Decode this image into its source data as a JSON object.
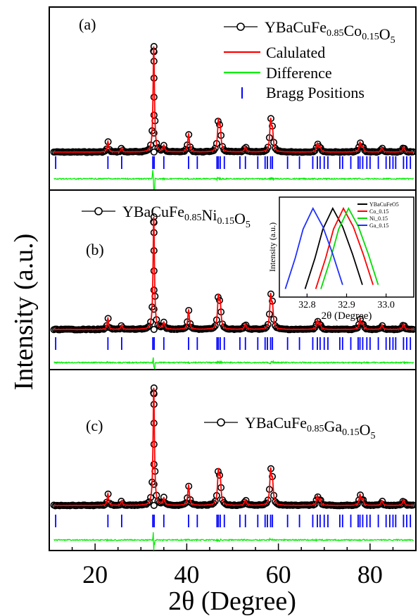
{
  "figure": {
    "ylabel": "Intensity (a.u.)",
    "xlabel": "2θ (Degree)",
    "x_ticks": [
      20,
      40,
      60,
      80
    ],
    "xlim": [
      10,
      90
    ]
  },
  "colors": {
    "observed": "#000000",
    "calculated": "#ff0000",
    "difference": "#00ee00",
    "bragg": "#0000ff",
    "inset_ni": "#00dd00",
    "inset_ga": "#2030ff"
  },
  "legend": {
    "calculated": "Calulated",
    "difference": "Difference",
    "bragg": "Bragg Positions"
  },
  "panels": [
    {
      "label": "(a)",
      "sample": {
        "base": "YBaCuFe",
        "s1": "0.85",
        "dop": "Co",
        "s2": "0.15",
        "tail": "O",
        "s3": "5"
      }
    },
    {
      "label": "(b)",
      "sample": {
        "base": "YBaCuFe",
        "s1": "0.85",
        "dop": "Ni",
        "s2": "0.15",
        "tail": "O",
        "s3": "5"
      }
    },
    {
      "label": "(c)",
      "sample": {
        "base": "YBaCuFe",
        "s1": "0.85",
        "dop": "Ga",
        "s2": "0.15",
        "tail": "O",
        "s3": "5"
      }
    }
  ],
  "chart_data": [
    {
      "type": "line",
      "description_of": "main XRD patterns (panels a, b, c); relative intensities, first peak = 1",
      "xlim": [
        10,
        90
      ],
      "peaks": [
        {
          "x": 22.8,
          "h": 0.1
        },
        {
          "x": 25.8,
          "h": 0.04
        },
        {
          "x": 32.8,
          "h": 1.0
        },
        {
          "x": 35.0,
          "h": 0.06
        },
        {
          "x": 40.4,
          "h": 0.17
        },
        {
          "x": 46.9,
          "h": 0.27
        },
        {
          "x": 47.3,
          "h": 0.2
        },
        {
          "x": 52.8,
          "h": 0.05
        },
        {
          "x": 58.3,
          "h": 0.28
        },
        {
          "x": 58.7,
          "h": 0.18
        },
        {
          "x": 68.5,
          "h": 0.08
        },
        {
          "x": 69.1,
          "h": 0.05
        },
        {
          "x": 77.8,
          "h": 0.09
        },
        {
          "x": 78.4,
          "h": 0.05
        },
        {
          "x": 82.6,
          "h": 0.04
        },
        {
          "x": 87.3,
          "h": 0.05
        }
      ],
      "bragg_positions": [
        11.4,
        22.8,
        25.8,
        32.6,
        32.9,
        35.0,
        40.4,
        42.3,
        46.6,
        46.9,
        47.3,
        48.2,
        51.6,
        52.8,
        55.5,
        57.1,
        57.6,
        58.3,
        58.7,
        62.0,
        64.6,
        67.5,
        68.5,
        69.1,
        70.0,
        70.8,
        73.4,
        74.0,
        75.8,
        77.4,
        77.8,
        78.4,
        79.3,
        80.0,
        81.8,
        83.5,
        84.3,
        85.0,
        85.6,
        87.3,
        88.0,
        88.8
      ]
    },
    {
      "type": "line",
      "description_of": "inset: main peak region",
      "xlabel": "2θ (Degree)",
      "ylabel": "Intensity (a.u.)",
      "xlim": [
        32.73,
        33.07
      ],
      "x_ticks": [
        32.8,
        32.9,
        33.0
      ],
      "series": [
        {
          "name": "YBaCuFeO5",
          "center": 32.865,
          "color": "#000000"
        },
        {
          "name": "Co_0.15",
          "center": 32.892,
          "color": "#ff0000"
        },
        {
          "name": "Ni_0.15",
          "center": 32.905,
          "color": "#00dd00"
        },
        {
          "name": "Ga_0.15",
          "center": 32.815,
          "color": "#2030ff"
        }
      ]
    }
  ]
}
